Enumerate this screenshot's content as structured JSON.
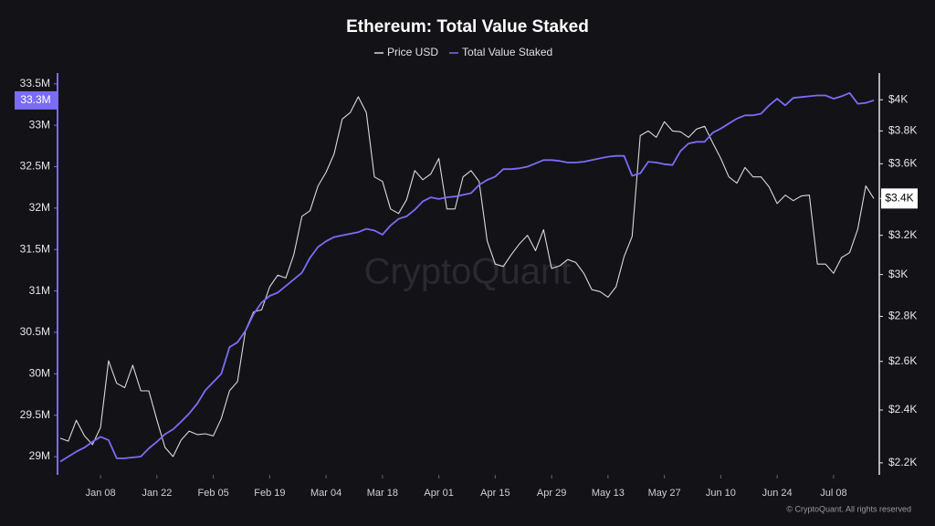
{
  "chart_data": {
    "type": "line",
    "title": "Ethereum: Total Value Staked",
    "watermark": "CryptoQuant",
    "credit": "© CryptoQuant. All rights reserved",
    "categories": [
      null,
      null,
      null,
      null,
      null,
      "Jan 08",
      null,
      null,
      null,
      null,
      null,
      null,
      "Jan 22",
      null,
      null,
      null,
      null,
      null,
      null,
      "Feb 05",
      null,
      null,
      null,
      null,
      null,
      null,
      "Feb 19",
      null,
      null,
      null,
      null,
      null,
      null,
      "Mar 04",
      null,
      null,
      null,
      null,
      null,
      null,
      "Mar 18",
      null,
      null,
      null,
      null,
      null,
      null,
      "Apr 01",
      null,
      null,
      null,
      null,
      null,
      null,
      "Apr 15",
      null,
      null,
      null,
      null,
      null,
      null,
      "Apr 29",
      null,
      null,
      null,
      null,
      null,
      null,
      "May 13",
      null,
      null,
      null,
      null,
      null,
      null,
      "May 27",
      null,
      null,
      null,
      null,
      null,
      null,
      "Jun 10",
      null,
      null,
      null,
      null,
      null,
      null,
      "Jun 24",
      null,
      null,
      null,
      null,
      null,
      null,
      "Jul 08",
      null,
      null,
      null,
      null,
      null
    ],
    "series": [
      {
        "name": "Price USD",
        "color": "#d9d9d9",
        "axis": "y2",
        "current_label": "$3.4K",
        "values": [
          2291,
          2280,
          2360,
          2300,
          2267,
          2332,
          2603,
          2508,
          2490,
          2584,
          2477,
          2477,
          2360,
          2257,
          2223,
          2284,
          2318,
          2305,
          2308,
          2300,
          2367,
          2477,
          2515,
          2737,
          2821,
          2830,
          2940,
          2997,
          2983,
          3100,
          3302,
          3332,
          3471,
          3550,
          3659,
          3875,
          3917,
          4020,
          3917,
          3523,
          3497,
          3342,
          3317,
          3393,
          3560,
          3507,
          3540,
          3632,
          3342,
          3342,
          3523,
          3560,
          3497,
          3170,
          3052,
          3040,
          3100,
          3155,
          3200,
          3120,
          3230,
          3030,
          3043,
          3075,
          3060,
          3006,
          2926,
          2917,
          2890,
          2940,
          3090,
          3194,
          3771,
          3800,
          3760,
          3858,
          3800,
          3795,
          3760,
          3812,
          3829,
          3726,
          3632,
          3523,
          3487,
          3578,
          3523,
          3523,
          3466,
          3372,
          3419,
          3388,
          3414,
          3419,
          3052,
          3052,
          3006,
          3085,
          3110,
          3233,
          3471,
          3400
        ]
      },
      {
        "name": "Total Value Staked",
        "color": "#7b6cf6",
        "current_label": "33.3M",
        "values": [
          28.94,
          29.0,
          29.06,
          29.11,
          29.18,
          29.24,
          29.2,
          28.98,
          28.98,
          28.99,
          29.0,
          29.1,
          29.18,
          29.27,
          29.33,
          29.42,
          29.52,
          29.64,
          29.8,
          29.9,
          30.0,
          30.32,
          30.38,
          30.52,
          30.72,
          30.86,
          30.94,
          30.98,
          31.06,
          31.14,
          31.22,
          31.4,
          31.53,
          31.6,
          31.65,
          31.67,
          31.69,
          31.71,
          31.75,
          31.73,
          31.68,
          31.79,
          31.87,
          31.9,
          31.98,
          32.08,
          32.13,
          32.11,
          32.13,
          32.14,
          32.16,
          32.18,
          32.28,
          32.34,
          32.38,
          32.47,
          32.47,
          32.48,
          32.5,
          32.54,
          32.58,
          32.58,
          32.57,
          32.55,
          32.55,
          32.56,
          32.58,
          32.6,
          32.62,
          32.63,
          32.63,
          32.39,
          32.42,
          32.56,
          32.55,
          32.53,
          32.52,
          32.69,
          32.78,
          32.8,
          32.8,
          32.91,
          32.96,
          33.02,
          33.08,
          33.12,
          33.12,
          33.14,
          33.24,
          33.32,
          33.24,
          33.33,
          33.34,
          33.35,
          33.36,
          33.36,
          33.32,
          33.35,
          33.39,
          33.26,
          33.27,
          33.3
        ]
      }
    ],
    "ylim": [
      28.78,
      33.63
    ],
    "yticks": [
      {
        "value": 29,
        "label": "29M"
      },
      {
        "value": 29.5,
        "label": "29.5M"
      },
      {
        "value": 30,
        "label": "30M"
      },
      {
        "value": 30.5,
        "label": "30.5M"
      },
      {
        "value": 31,
        "label": "31M"
      },
      {
        "value": 31.5,
        "label": "31.5M"
      },
      {
        "value": 32,
        "label": "32M"
      },
      {
        "value": 32.5,
        "label": "32.5M"
      },
      {
        "value": 33,
        "label": "33M"
      },
      {
        "value": 33.5,
        "label": "33.5M"
      }
    ],
    "y2lim": [
      2157,
      4180
    ],
    "y2log": true,
    "y2ticks": [
      {
        "value": 2200,
        "label": "$2.2K"
      },
      {
        "value": 2400,
        "label": "$2.4K"
      },
      {
        "value": 2600,
        "label": "$2.6K"
      },
      {
        "value": 2800,
        "label": "$2.8K"
      },
      {
        "value": 3000,
        "label": "$3K"
      },
      {
        "value": 3200,
        "label": "$3.2K"
      },
      {
        "value": 3400,
        "label": "$3.4K"
      },
      {
        "value": 3600,
        "label": "$3.6K"
      },
      {
        "value": 3800,
        "label": "$3.8K"
      },
      {
        "value": 4000,
        "label": "$4K"
      }
    ],
    "grid": false
  }
}
